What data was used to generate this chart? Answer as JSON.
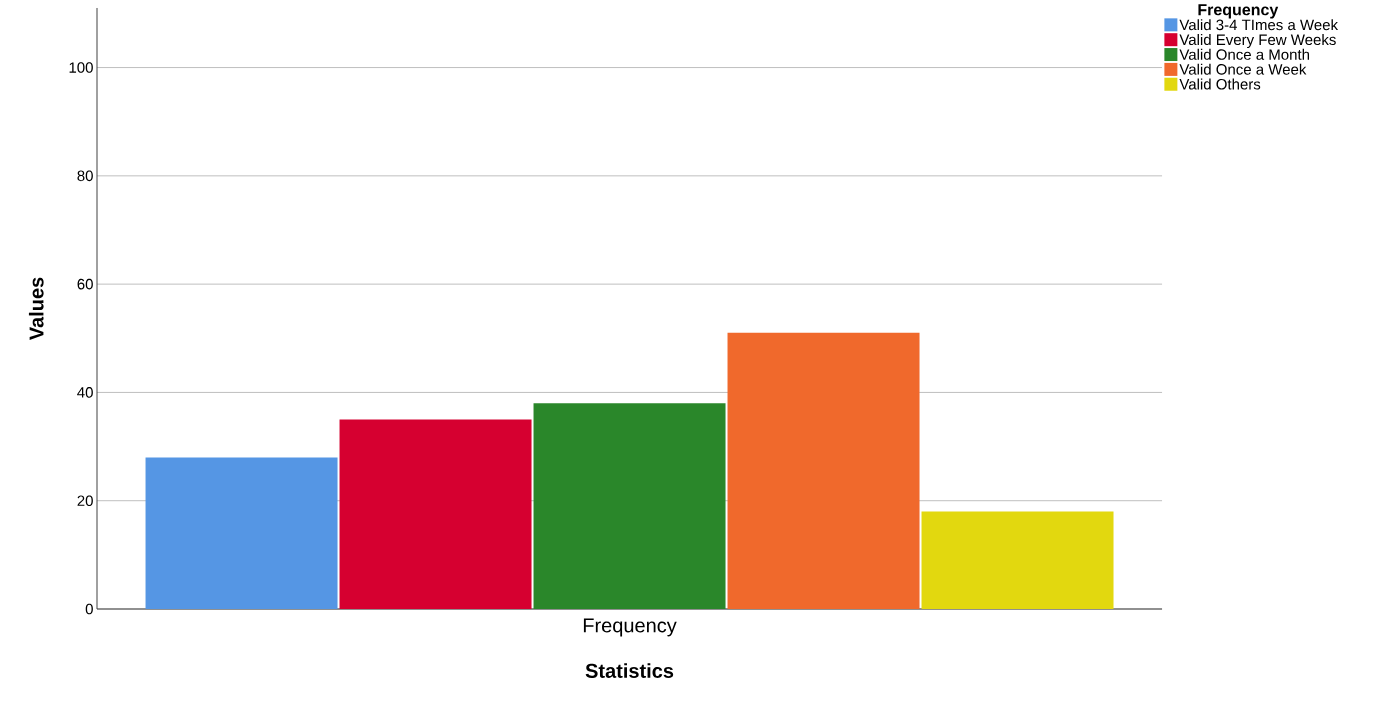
{
  "chart_data": {
    "type": "bar",
    "xlabel": "Statistics",
    "ylabel": "Values",
    "legend_title": "Frequency",
    "categories": [
      "Frequency"
    ],
    "series": [
      {
        "name": "Valid  3-4 TImes a Week",
        "color": "#5596e4",
        "values": [
          28
        ]
      },
      {
        "name": "Valid  Every Few Weeks",
        "color": "#d60030",
        "values": [
          35
        ]
      },
      {
        "name": "Valid  Once a Month",
        "color": "#2a872a",
        "values": [
          38
        ]
      },
      {
        "name": "Valid  Once  a Week",
        "color": "#f0692c",
        "values": [
          51
        ]
      },
      {
        "name": "Valid  Others",
        "color": "#e2d80f",
        "values": [
          18
        ]
      }
    ],
    "ylim": [
      0,
      111
    ],
    "yticks": [
      0,
      20,
      40,
      60,
      80,
      100
    ],
    "grid": "y",
    "legend": "top right"
  }
}
